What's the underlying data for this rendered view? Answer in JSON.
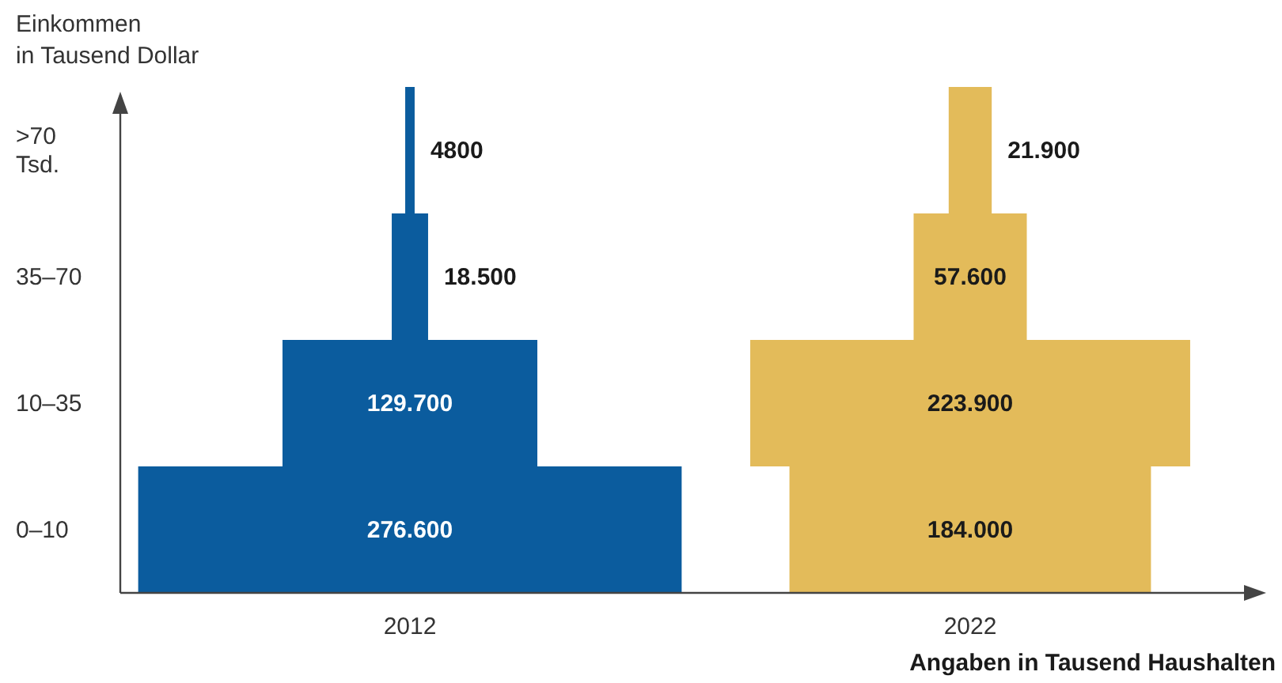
{
  "chart_data": {
    "type": "other",
    "ylabel": "Einkommen\nin Tausend Dollar",
    "xlabel": "Angaben in Tausend Haushalten",
    "categories": [
      ">70\nTsd.",
      "35–70",
      "10–35",
      "0–10"
    ],
    "series": [
      {
        "name": "2012",
        "color": "#0b5c9e",
        "values": [
          4800,
          18500,
          129700,
          276600
        ],
        "value_labels": [
          "4800",
          "18.500",
          "129.700",
          "276.600"
        ]
      },
      {
        "name": "2022",
        "color": "#e3bb5a",
        "values": [
          21900,
          57600,
          223900,
          184000
        ],
        "value_labels": [
          "21.900",
          "57.600",
          "223.900",
          "184.000"
        ]
      }
    ]
  }
}
